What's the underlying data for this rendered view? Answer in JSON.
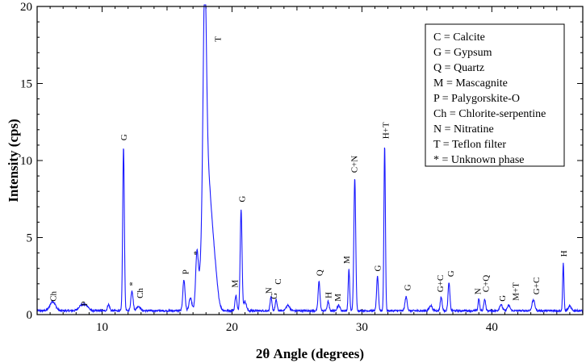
{
  "chart_data": {
    "type": "line",
    "xlabel": "2θ Angle (degrees)",
    "ylabel": "Intensity (cps)",
    "xlim": [
      5,
      47
    ],
    "ylim": [
      0,
      20
    ],
    "xticks": [
      10,
      20,
      30,
      40
    ],
    "yticks": [
      0,
      5,
      10,
      15,
      20
    ],
    "xtick_labels": [
      "10",
      "20",
      "30",
      "40"
    ],
    "ytick_labels": [
      "0",
      "5",
      "10",
      "15",
      "20"
    ],
    "color": "#1a1aff",
    "legend": {
      "placement": "top-right",
      "entries": [
        "C = Calcite",
        "G = Gypsum",
        "Q = Quartz",
        "M = Mascagnite",
        "P = Palygorskite-O",
        "Ch = Chlorite-serpentine",
        "N = Nitratine",
        "T = Teflon filter",
        "* = Unknown phase"
      ]
    },
    "baseline": 0.25,
    "peaks": [
      {
        "x": 6.2,
        "y": 0.6,
        "w": 0.3
      },
      {
        "x": 8.4,
        "y": 0.35,
        "w": 0.3
      },
      {
        "x": 8.8,
        "y": 0.3,
        "w": 0.25
      },
      {
        "x": 10.5,
        "y": 0.4,
        "w": 0.12
      },
      {
        "x": 11.65,
        "y": 10.6,
        "w": 0.09
      },
      {
        "x": 12.3,
        "y": 1.3,
        "w": 0.12
      },
      {
        "x": 12.8,
        "y": 0.3,
        "w": 0.2
      },
      {
        "x": 16.3,
        "y": 2.0,
        "w": 0.12
      },
      {
        "x": 16.8,
        "y": 0.8,
        "w": 0.15
      },
      {
        "x": 17.3,
        "y": 3.2,
        "w": 0.14
      },
      {
        "x": 17.9,
        "y": 14.0,
        "w": 0.18
      },
      {
        "x": 18.1,
        "y": 9.0,
        "w": 0.5
      },
      {
        "x": 18.7,
        "y": 1.3,
        "w": 0.3
      },
      {
        "x": 20.3,
        "y": 1.0,
        "w": 0.1
      },
      {
        "x": 20.7,
        "y": 6.6,
        "w": 0.1
      },
      {
        "x": 21.0,
        "y": 0.6,
        "w": 0.15
      },
      {
        "x": 23.0,
        "y": 0.85,
        "w": 0.1
      },
      {
        "x": 23.4,
        "y": 0.7,
        "w": 0.1
      },
      {
        "x": 24.3,
        "y": 0.35,
        "w": 0.2
      },
      {
        "x": 26.7,
        "y": 1.9,
        "w": 0.1
      },
      {
        "x": 27.4,
        "y": 0.6,
        "w": 0.1
      },
      {
        "x": 28.2,
        "y": 0.35,
        "w": 0.15
      },
      {
        "x": 29.0,
        "y": 2.7,
        "w": 0.08
      },
      {
        "x": 29.45,
        "y": 8.6,
        "w": 0.1
      },
      {
        "x": 31.2,
        "y": 2.2,
        "w": 0.1
      },
      {
        "x": 31.75,
        "y": 10.7,
        "w": 0.08
      },
      {
        "x": 33.4,
        "y": 0.9,
        "w": 0.12
      },
      {
        "x": 35.3,
        "y": 0.35,
        "w": 0.15
      },
      {
        "x": 36.1,
        "y": 0.9,
        "w": 0.1
      },
      {
        "x": 36.7,
        "y": 1.8,
        "w": 0.1
      },
      {
        "x": 39.0,
        "y": 0.8,
        "w": 0.08
      },
      {
        "x": 39.45,
        "y": 0.75,
        "w": 0.1
      },
      {
        "x": 40.7,
        "y": 0.4,
        "w": 0.15
      },
      {
        "x": 41.3,
        "y": 0.35,
        "w": 0.15
      },
      {
        "x": 43.2,
        "y": 0.7,
        "w": 0.15
      },
      {
        "x": 45.5,
        "y": 3.1,
        "w": 0.07
      },
      {
        "x": 46.0,
        "y": 0.3,
        "w": 0.15
      }
    ],
    "annotations": [
      {
        "text": "Ch",
        "x": 6.2,
        "y": 0.85
      },
      {
        "text": "P",
        "x": 8.6,
        "y": 0.55
      },
      {
        "text": "G",
        "x": 11.65,
        "y": 11.3
      },
      {
        "text": "*",
        "x": 12.3,
        "y": 1.85
      },
      {
        "text": "Ch",
        "x": 12.9,
        "y": 1.05
      },
      {
        "text": "P",
        "x": 16.4,
        "y": 2.6
      },
      {
        "text": "*",
        "x": 17.25,
        "y": 3.85
      },
      {
        "text": "T",
        "x": 18.9,
        "y": 17.7
      },
      {
        "text": "M",
        "x": 20.2,
        "y": 1.75
      },
      {
        "text": "G",
        "x": 20.75,
        "y": 7.3
      },
      {
        "text": "N",
        "x": 22.8,
        "y": 1.35
      },
      {
        "text": "G",
        "x": 23.2,
        "y": 1.0
      },
      {
        "text": "C",
        "x": 23.5,
        "y": 1.95
      },
      {
        "text": "Q",
        "x": 26.7,
        "y": 2.5
      },
      {
        "text": "H",
        "x": 27.4,
        "y": 1.05
      },
      {
        "text": "M",
        "x": 28.1,
        "y": 0.85
      },
      {
        "text": "M",
        "x": 28.8,
        "y": 3.3
      },
      {
        "text": "C+N",
        "x": 29.4,
        "y": 9.2
      },
      {
        "text": "G",
        "x": 31.2,
        "y": 2.8
      },
      {
        "text": "H+T",
        "x": 31.8,
        "y": 11.4
      },
      {
        "text": "G",
        "x": 33.5,
        "y": 1.55
      },
      {
        "text": "G+C",
        "x": 36.0,
        "y": 1.45
      },
      {
        "text": "G",
        "x": 36.8,
        "y": 2.45
      },
      {
        "text": "N",
        "x": 38.9,
        "y": 1.3
      },
      {
        "text": "C+Q",
        "x": 39.5,
        "y": 1.45
      },
      {
        "text": "G",
        "x": 40.8,
        "y": 0.85
      },
      {
        "text": "M+T",
        "x": 41.8,
        "y": 0.9
      },
      {
        "text": "G+C",
        "x": 43.4,
        "y": 1.3
      },
      {
        "text": "H",
        "x": 45.5,
        "y": 3.75
      }
    ]
  }
}
